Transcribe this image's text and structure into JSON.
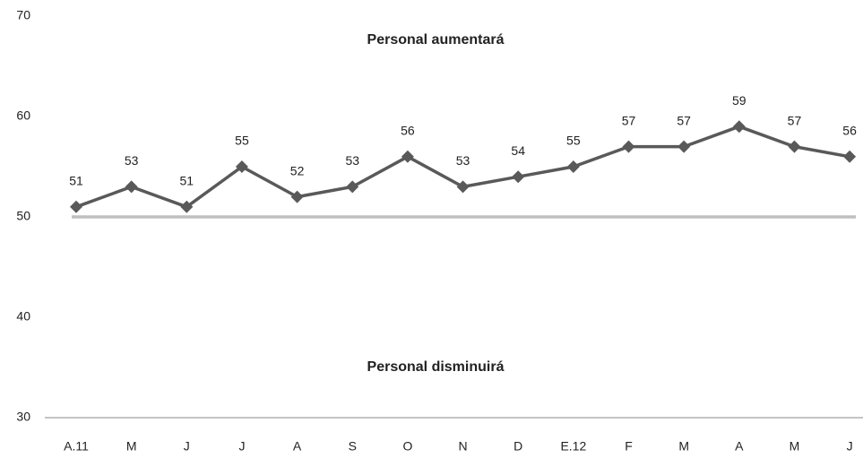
{
  "chart_data": {
    "type": "line",
    "categories": [
      "A.11",
      "M",
      "J",
      "J",
      "A",
      "S",
      "O",
      "N",
      "D",
      "E.12",
      "F",
      "M",
      "A",
      "M",
      "J"
    ],
    "series": [
      {
        "color": "#595959",
        "values": [
          51,
          53,
          51,
          55,
          52,
          53,
          56,
          53,
          54,
          55,
          57,
          57,
          59,
          57,
          56
        ]
      }
    ],
    "ylim": [
      30,
      70
    ],
    "yticks": [
      30,
      40,
      50,
      60,
      70
    ],
    "reference_line": {
      "value": 50,
      "color": "#bfbfbf"
    },
    "annotations": [
      "Personal aumentará",
      "Personal disminuirá"
    ],
    "marker": "diamond",
    "grid": false
  }
}
